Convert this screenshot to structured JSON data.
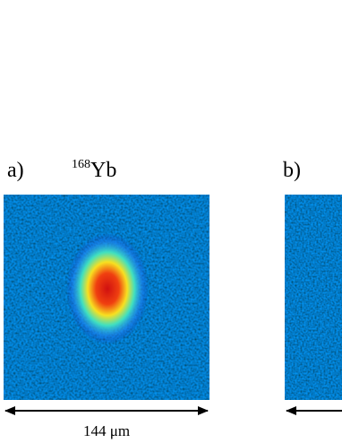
{
  "panels": [
    {
      "label": "a)",
      "isotope": {
        "mass": "168",
        "symbol": "Yb"
      }
    },
    {
      "label": "b)"
    }
  ],
  "scale_bar": "144 μm"
}
